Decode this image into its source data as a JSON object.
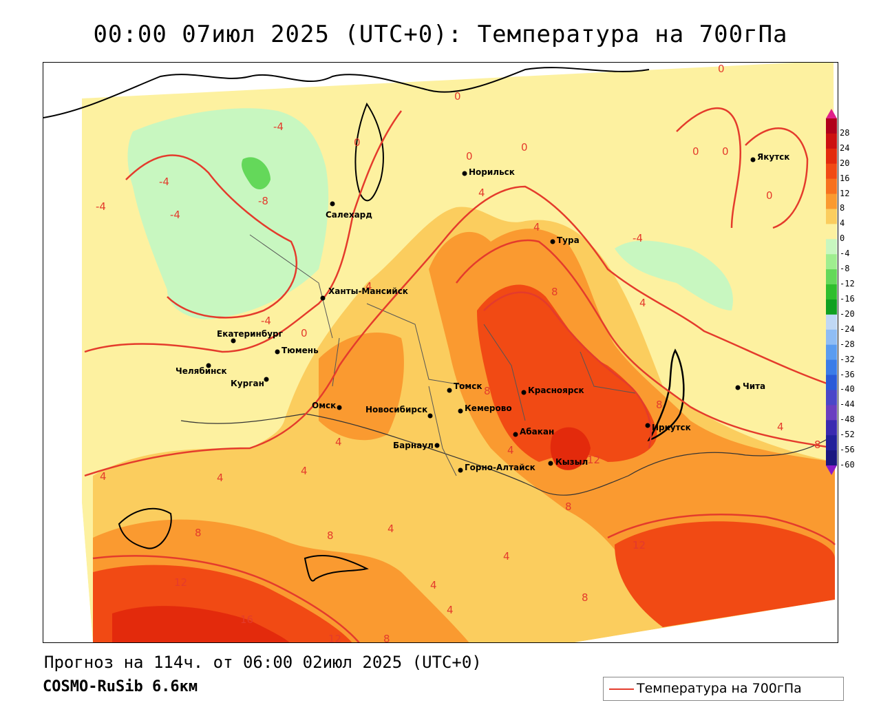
{
  "title": "00:00 07июл 2025 (UTC+0): Температура на 700гПа",
  "forecast_line": "Прогноз на 114ч. от 06:00 02июл 2025 (UTC+0)",
  "model_line": "COSMO-RuSib 6.6км",
  "legend": {
    "label": "Температура на 700гПа",
    "color": "#e43b2c"
  },
  "colorbar": {
    "ticks": [
      "28",
      "24",
      "20",
      "16",
      "12",
      "8",
      "4",
      "0",
      "-4",
      "-8",
      "-12",
      "-16",
      "-20",
      "-24",
      "-28",
      "-32",
      "-36",
      "-40",
      "-44",
      "-48",
      "-52",
      "-56",
      "-60"
    ],
    "colors": [
      "#b0001a",
      "#cc1010",
      "#e32a0c",
      "#f14a14",
      "#f7711e",
      "#fa9a30",
      "#fbcd5e",
      "#fdf1a0",
      "#c8f7c0",
      "#9fee8f",
      "#64d85a",
      "#2fbe2d",
      "#10a020",
      "#c0d8f5",
      "#8fbdf5",
      "#5a9cf0",
      "#3b7ce8",
      "#2a5ad8",
      "#4a46c8",
      "#6a3ec0",
      "#3a2ab0",
      "#22209a",
      "#1a1680"
    ],
    "top_color": "#e0208a",
    "bottom_color": "#8a1ac8"
  },
  "cities": [
    {
      "name": "Норильск"
    },
    {
      "name": "Якутск"
    },
    {
      "name": "Салехард"
    },
    {
      "name": "Тура"
    },
    {
      "name": "Ханты-Мансийск"
    },
    {
      "name": "Екатеринбург"
    },
    {
      "name": "Тюмень"
    },
    {
      "name": "Челябинск"
    },
    {
      "name": "Курган"
    },
    {
      "name": "Омск"
    },
    {
      "name": "Новосибирск"
    },
    {
      "name": "Томск"
    },
    {
      "name": "Кемерово"
    },
    {
      "name": "Красноярск"
    },
    {
      "name": "Абакан"
    },
    {
      "name": "Барнаул"
    },
    {
      "name": "Горно-Алтайск"
    },
    {
      "name": "Кызыл"
    },
    {
      "name": "Иркутск"
    },
    {
      "name": "Чита"
    }
  ],
  "isoline_labels": [
    "-4",
    "-4",
    "-4",
    "-4",
    "-8",
    "-4",
    "0",
    "0",
    "0",
    "0",
    "0",
    "0",
    "0",
    "-4",
    "0",
    "0",
    "4",
    "4",
    "8",
    "4",
    "4",
    "8",
    "8",
    "12",
    "12",
    "4",
    "4",
    "4",
    "4",
    "4",
    "8",
    "8",
    "12",
    "16",
    "12",
    "4",
    "4",
    "8",
    "4",
    "8",
    "8",
    "12",
    "8",
    "4",
    "4"
  ]
}
